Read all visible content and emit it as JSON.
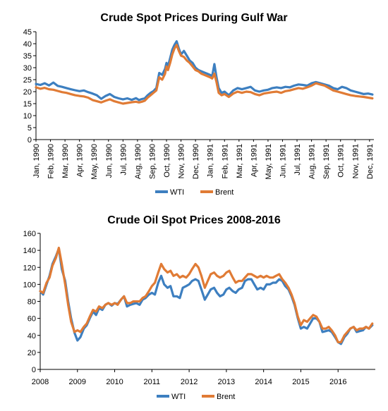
{
  "chart_data": [
    {
      "type": "line",
      "title": "Crude Spot Prices During Gulf War",
      "xlabel": "",
      "ylabel": "",
      "ylim": [
        0,
        45
      ],
      "yticks": [
        0,
        5,
        10,
        15,
        20,
        25,
        30,
        35,
        40,
        45
      ],
      "xlim": [
        0,
        23.3
      ],
      "x_unit": "months since Jan 1990",
      "categories": [
        "Jan, 1990",
        "Feb, 1990",
        "Mar, 1990",
        "Apr, 1990",
        "May, 1990",
        "Jun, 1990",
        "Jul, 1990",
        "Aug, 1990",
        "Sep, 1990",
        "Oct, 1990",
        "Nov, 1990",
        "Dec, 1990",
        "Jan, 1991",
        "Feb, 1991",
        "Mar, 1991",
        "Apr, 1991",
        "May, 1991",
        "Jun, 1991",
        "Jul, 1991",
        "Aug, 1991",
        "Sep, 1991",
        "Oct, 1991",
        "Nov, 1991",
        "Dec, 1991"
      ],
      "legend_position": "bottom",
      "colors": {
        "WTI": "#3d7fc0",
        "Brent": "#e07b35"
      },
      "series": [
        {
          "name": "WTI",
          "x": [
            0,
            0.3,
            0.6,
            0.9,
            1.2,
            1.5,
            1.8,
            2.1,
            2.4,
            2.7,
            3.0,
            3.3,
            3.6,
            3.9,
            4.2,
            4.5,
            4.8,
            5.1,
            5.4,
            5.7,
            6.0,
            6.3,
            6.6,
            6.9,
            7.1,
            7.3,
            7.5,
            7.7,
            7.9,
            8.1,
            8.3,
            8.5,
            8.7,
            8.9,
            9.0,
            9.1,
            9.25,
            9.4,
            9.55,
            9.7,
            9.85,
            10.0,
            10.2,
            10.4,
            10.6,
            10.8,
            11.0,
            11.2,
            11.4,
            11.6,
            11.8,
            12.0,
            12.15,
            12.3,
            12.45,
            12.6,
            12.8,
            13.0,
            13.3,
            13.6,
            13.9,
            14.2,
            14.5,
            14.8,
            15.1,
            15.4,
            15.7,
            16.0,
            16.3,
            16.6,
            16.9,
            17.2,
            17.5,
            17.8,
            18.1,
            18.4,
            18.7,
            19.0,
            19.3,
            19.6,
            19.9,
            20.2,
            20.5,
            20.8,
            21.1,
            21.4,
            21.7,
            22.0,
            22.3,
            22.6,
            22.9,
            23.2
          ],
          "y": [
            23.2,
            22.8,
            23.5,
            22.6,
            23.8,
            22.4,
            22.0,
            21.5,
            21.0,
            20.6,
            20.2,
            20.5,
            19.8,
            19.2,
            18.5,
            17.0,
            18.2,
            19.0,
            17.8,
            17.2,
            16.8,
            17.2,
            16.6,
            17.3,
            16.5,
            16.9,
            17.2,
            18.5,
            19.5,
            20.2,
            21.5,
            27.8,
            27.0,
            29.5,
            32.0,
            30.5,
            34.0,
            37.5,
            39.5,
            41.0,
            38.0,
            35.5,
            37.0,
            35.0,
            33.0,
            32.0,
            30.0,
            29.0,
            28.5,
            28.0,
            27.5,
            27.0,
            26.5,
            31.5,
            26.0,
            21.5,
            19.5,
            20.0,
            18.5,
            20.5,
            21.5,
            21.0,
            21.5,
            22.0,
            20.5,
            20.0,
            20.5,
            20.8,
            21.5,
            21.8,
            21.5,
            22.0,
            21.8,
            22.5,
            23.0,
            22.8,
            22.5,
            23.5,
            24.0,
            23.5,
            23.0,
            22.5,
            21.5,
            21.0,
            22.0,
            21.5,
            20.5,
            20.0,
            19.5,
            19.0,
            19.2,
            18.8
          ]
        },
        {
          "name": "Brent",
          "x": [
            0,
            0.3,
            0.6,
            0.9,
            1.2,
            1.5,
            1.8,
            2.1,
            2.4,
            2.7,
            3.0,
            3.3,
            3.6,
            3.9,
            4.2,
            4.5,
            4.8,
            5.1,
            5.4,
            5.7,
            6.0,
            6.3,
            6.6,
            6.9,
            7.1,
            7.3,
            7.5,
            7.7,
            7.9,
            8.1,
            8.3,
            8.5,
            8.7,
            8.9,
            9.0,
            9.1,
            9.25,
            9.4,
            9.55,
            9.7,
            9.85,
            10.0,
            10.2,
            10.4,
            10.6,
            10.8,
            11.0,
            11.2,
            11.4,
            11.6,
            11.8,
            12.0,
            12.15,
            12.3,
            12.45,
            12.6,
            12.8,
            13.0,
            13.3,
            13.6,
            13.9,
            14.2,
            14.5,
            14.8,
            15.1,
            15.4,
            15.7,
            16.0,
            16.3,
            16.6,
            16.9,
            17.2,
            17.5,
            17.8,
            18.1,
            18.4,
            18.7,
            19.0,
            19.3,
            19.6,
            19.9,
            20.2,
            20.5,
            20.8,
            21.1,
            21.4,
            21.7,
            22.0,
            22.3,
            22.6,
            22.9,
            23.2
          ],
          "y": [
            21.8,
            21.2,
            21.6,
            21.0,
            20.8,
            20.3,
            19.8,
            19.5,
            19.0,
            18.5,
            18.2,
            18.0,
            17.5,
            16.5,
            16.0,
            15.5,
            16.2,
            16.8,
            16.0,
            15.5,
            15.0,
            15.3,
            15.6,
            15.8,
            15.5,
            15.8,
            16.2,
            17.5,
            18.5,
            19.5,
            20.5,
            26.0,
            25.0,
            27.5,
            30.5,
            29.0,
            32.0,
            35.5,
            38.0,
            39.5,
            37.0,
            35.0,
            34.5,
            33.0,
            32.0,
            30.5,
            29.0,
            28.5,
            27.5,
            27.0,
            26.5,
            26.0,
            25.5,
            27.5,
            24.0,
            19.5,
            18.5,
            19.0,
            17.8,
            19.2,
            20.0,
            19.5,
            20.0,
            19.8,
            19.0,
            18.5,
            19.2,
            19.5,
            19.8,
            20.0,
            19.5,
            20.2,
            20.5,
            21.0,
            21.5,
            21.2,
            21.8,
            22.5,
            23.5,
            23.0,
            22.5,
            21.5,
            20.5,
            20.0,
            19.5,
            19.0,
            18.5,
            18.2,
            18.0,
            17.8,
            17.5,
            17.2
          ]
        }
      ]
    },
    {
      "type": "line",
      "title": "Crude Oil Spot Prices 2008-2016",
      "xlabel": "",
      "ylabel": "",
      "ylim": [
        0,
        160
      ],
      "yticks": [
        0,
        20,
        40,
        60,
        80,
        100,
        120,
        140,
        160
      ],
      "xlim": [
        2008,
        2017
      ],
      "xticks": [
        2008,
        2009,
        2010,
        2011,
        2012,
        2013,
        2014,
        2015,
        2016
      ],
      "legend_position": "bottom",
      "colors": {
        "WTI": "#3d7fc0",
        "Brent": "#e07b35"
      },
      "series": [
        {
          "name": "WTI",
          "x": [
            2008.0,
            2008.08,
            2008.17,
            2008.25,
            2008.33,
            2008.42,
            2008.5,
            2008.58,
            2008.67,
            2008.75,
            2008.83,
            2008.92,
            2009.0,
            2009.08,
            2009.17,
            2009.25,
            2009.33,
            2009.42,
            2009.5,
            2009.58,
            2009.67,
            2009.75,
            2009.83,
            2009.92,
            2010.0,
            2010.08,
            2010.17,
            2010.25,
            2010.33,
            2010.42,
            2010.5,
            2010.58,
            2010.67,
            2010.75,
            2010.83,
            2010.92,
            2011.0,
            2011.08,
            2011.17,
            2011.25,
            2011.33,
            2011.42,
            2011.5,
            2011.58,
            2011.67,
            2011.75,
            2011.83,
            2011.92,
            2012.0,
            2012.08,
            2012.17,
            2012.25,
            2012.33,
            2012.42,
            2012.5,
            2012.58,
            2012.67,
            2012.75,
            2012.83,
            2012.92,
            2013.0,
            2013.08,
            2013.17,
            2013.25,
            2013.33,
            2013.42,
            2013.5,
            2013.58,
            2013.67,
            2013.75,
            2013.83,
            2013.92,
            2014.0,
            2014.08,
            2014.17,
            2014.25,
            2014.33,
            2014.42,
            2014.5,
            2014.58,
            2014.67,
            2014.75,
            2014.83,
            2014.92,
            2015.0,
            2015.08,
            2015.17,
            2015.25,
            2015.33,
            2015.42,
            2015.5,
            2015.58,
            2015.67,
            2015.75,
            2015.83,
            2015.92,
            2016.0,
            2016.08,
            2016.17,
            2016.25,
            2016.33,
            2016.42,
            2016.5,
            2016.58,
            2016.67,
            2016.75,
            2016.83,
            2016.92
          ],
          "y": [
            92,
            88,
            100,
            110,
            124,
            133,
            142,
            118,
            104,
            80,
            60,
            43,
            34,
            38,
            48,
            52,
            60,
            68,
            64,
            72,
            70,
            76,
            78,
            75,
            78,
            77,
            82,
            86,
            74,
            76,
            77,
            78,
            76,
            82,
            84,
            88,
            90,
            88,
            102,
            110,
            100,
            96,
            98,
            86,
            86,
            84,
            96,
            98,
            100,
            104,
            106,
            104,
            94,
            82,
            88,
            94,
            96,
            90,
            86,
            88,
            94,
            96,
            92,
            90,
            94,
            96,
            104,
            106,
            106,
            100,
            94,
            96,
            94,
            100,
            100,
            102,
            102,
            106,
            104,
            98,
            94,
            86,
            76,
            60,
            48,
            50,
            48,
            54,
            60,
            60,
            56,
            44,
            45,
            46,
            44,
            38,
            32,
            30,
            38,
            42,
            48,
            50,
            44,
            45,
            46,
            50,
            48,
            52
          ]
        },
        {
          "name": "Brent",
          "x": [
            2008.0,
            2008.08,
            2008.17,
            2008.25,
            2008.33,
            2008.42,
            2008.5,
            2008.58,
            2008.67,
            2008.75,
            2008.83,
            2008.92,
            2009.0,
            2009.08,
            2009.17,
            2009.25,
            2009.33,
            2009.42,
            2009.5,
            2009.58,
            2009.67,
            2009.75,
            2009.83,
            2009.92,
            2010.0,
            2010.08,
            2010.17,
            2010.25,
            2010.33,
            2010.42,
            2010.5,
            2010.58,
            2010.67,
            2010.75,
            2010.83,
            2010.92,
            2011.0,
            2011.08,
            2011.17,
            2011.25,
            2011.33,
            2011.42,
            2011.5,
            2011.58,
            2011.67,
            2011.75,
            2011.83,
            2011.92,
            2012.0,
            2012.08,
            2012.17,
            2012.25,
            2012.33,
            2012.42,
            2012.5,
            2012.58,
            2012.67,
            2012.75,
            2012.83,
            2012.92,
            2013.0,
            2013.08,
            2013.17,
            2013.25,
            2013.33,
            2013.42,
            2013.5,
            2013.58,
            2013.67,
            2013.75,
            2013.83,
            2013.92,
            2014.0,
            2014.08,
            2014.17,
            2014.25,
            2014.33,
            2014.42,
            2014.5,
            2014.58,
            2014.67,
            2014.75,
            2014.83,
            2014.92,
            2015.0,
            2015.08,
            2015.17,
            2015.25,
            2015.33,
            2015.42,
            2015.5,
            2015.58,
            2015.67,
            2015.75,
            2015.83,
            2015.92,
            2016.0,
            2016.08,
            2016.17,
            2016.25,
            2016.33,
            2016.42,
            2016.5,
            2016.58,
            2016.67,
            2016.75,
            2016.83,
            2016.92
          ],
          "y": [
            92,
            90,
            102,
            108,
            122,
            131,
            143,
            124,
            100,
            76,
            56,
            44,
            46,
            44,
            50,
            54,
            62,
            70,
            68,
            74,
            72,
            76,
            78,
            76,
            78,
            76,
            82,
            86,
            78,
            78,
            80,
            80,
            80,
            84,
            86,
            92,
            98,
            102,
            114,
            124,
            118,
            114,
            116,
            110,
            112,
            108,
            110,
            108,
            112,
            118,
            124,
            120,
            110,
            96,
            104,
            112,
            114,
            110,
            108,
            110,
            114,
            116,
            108,
            102,
            104,
            104,
            108,
            112,
            112,
            110,
            108,
            110,
            108,
            110,
            108,
            108,
            110,
            112,
            106,
            102,
            96,
            88,
            78,
            62,
            52,
            58,
            56,
            60,
            64,
            62,
            56,
            48,
            48,
            50,
            46,
            40,
            32,
            32,
            40,
            44,
            48,
            50,
            46,
            48,
            48,
            50,
            48,
            54
          ]
        }
      ]
    }
  ]
}
